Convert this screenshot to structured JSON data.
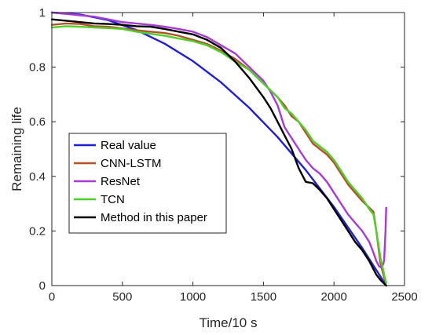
{
  "chart_data": {
    "type": "line",
    "title": "",
    "xlabel": "Time/10 s",
    "ylabel": "Remaining life",
    "xlim": [
      0,
      2500
    ],
    "ylim": [
      0,
      1
    ],
    "xticks": [
      0,
      500,
      1000,
      1500,
      2000,
      2500
    ],
    "yticks": [
      0,
      0.2,
      0.4,
      0.6,
      0.8,
      1
    ],
    "xtick_labels": [
      "0",
      "500",
      "1000",
      "1500",
      "2000",
      "2500"
    ],
    "ytick_labels": [
      "0",
      "0.2",
      "0.4",
      "0.6",
      "0.8",
      "1"
    ],
    "grid": false,
    "legend_position": "lower-left",
    "series": [
      {
        "name": "Real value",
        "color": "#1f1fd6",
        "x": [
          0,
          200,
          400,
          600,
          800,
          1000,
          1200,
          1400,
          1600,
          1800,
          2000,
          2200,
          2370
        ],
        "y": [
          1.0,
          0.993,
          0.972,
          0.936,
          0.886,
          0.822,
          0.744,
          0.651,
          0.544,
          0.423,
          0.288,
          0.138,
          0.0
        ]
      },
      {
        "name": "CNN-LSTM",
        "color": "#b5512a",
        "x": [
          0,
          100,
          200,
          300,
          400,
          500,
          600,
          700,
          800,
          900,
          1000,
          1100,
          1200,
          1300,
          1400,
          1500,
          1600,
          1650,
          1700,
          1750,
          1800,
          1850,
          1900,
          1950,
          2000,
          2050,
          2100,
          2150,
          2200,
          2250,
          2280,
          2300,
          2330,
          2360,
          2370
        ],
        "y": [
          0.955,
          0.96,
          0.958,
          0.95,
          0.948,
          0.942,
          0.935,
          0.93,
          0.925,
          0.915,
          0.9,
          0.885,
          0.86,
          0.83,
          0.79,
          0.74,
          0.69,
          0.66,
          0.62,
          0.6,
          0.56,
          0.52,
          0.5,
          0.48,
          0.45,
          0.41,
          0.37,
          0.34,
          0.31,
          0.285,
          0.27,
          0.2,
          0.08,
          0.02,
          0.01
        ]
      },
      {
        "name": "ResNet",
        "color": "#a83ad6",
        "x": [
          0,
          100,
          200,
          300,
          400,
          500,
          600,
          700,
          800,
          900,
          1000,
          1100,
          1200,
          1300,
          1400,
          1500,
          1550,
          1600,
          1650,
          1700,
          1750,
          1800,
          1850,
          1900,
          1950,
          2000,
          2050,
          2100,
          2150,
          2200,
          2250,
          2280,
          2300,
          2320,
          2340,
          2355,
          2365,
          2370
        ],
        "y": [
          1.0,
          0.995,
          0.99,
          0.985,
          0.975,
          0.965,
          0.96,
          0.955,
          0.948,
          0.94,
          0.93,
          0.91,
          0.88,
          0.85,
          0.8,
          0.75,
          0.71,
          0.66,
          0.58,
          0.54,
          0.5,
          0.46,
          0.43,
          0.41,
          0.38,
          0.34,
          0.3,
          0.26,
          0.23,
          0.2,
          0.16,
          0.12,
          0.09,
          0.07,
          0.065,
          0.09,
          0.2,
          0.285
        ]
      },
      {
        "name": "TCN",
        "color": "#4fcf2a",
        "x": [
          0,
          100,
          200,
          300,
          400,
          500,
          600,
          700,
          800,
          900,
          1000,
          1100,
          1200,
          1300,
          1400,
          1500,
          1600,
          1650,
          1700,
          1750,
          1800,
          1850,
          1900,
          1950,
          2000,
          2050,
          2100,
          2150,
          2200,
          2250,
          2280,
          2300,
          2330,
          2360,
          2370
        ],
        "y": [
          0.945,
          0.95,
          0.948,
          0.945,
          0.943,
          0.94,
          0.93,
          0.922,
          0.915,
          0.905,
          0.895,
          0.88,
          0.855,
          0.82,
          0.79,
          0.74,
          0.69,
          0.65,
          0.63,
          0.6,
          0.57,
          0.53,
          0.51,
          0.49,
          0.46,
          0.42,
          0.38,
          0.35,
          0.32,
          0.28,
          0.26,
          0.2,
          0.1,
          0.03,
          0.01
        ]
      },
      {
        "name": "Method in this paper",
        "color": "#000000",
        "x": [
          0,
          100,
          200,
          300,
          400,
          500,
          600,
          700,
          800,
          900,
          1000,
          1100,
          1200,
          1300,
          1400,
          1500,
          1550,
          1600,
          1650,
          1700,
          1750,
          1800,
          1850,
          1900,
          1950,
          2000,
          2050,
          2100,
          2150,
          2200,
          2250,
          2300,
          2330,
          2350,
          2370
        ],
        "y": [
          0.975,
          0.97,
          0.965,
          0.96,
          0.958,
          0.955,
          0.95,
          0.948,
          0.94,
          0.93,
          0.92,
          0.9,
          0.87,
          0.82,
          0.76,
          0.69,
          0.65,
          0.6,
          0.55,
          0.5,
          0.43,
          0.38,
          0.375,
          0.35,
          0.32,
          0.28,
          0.24,
          0.2,
          0.16,
          0.13,
          0.09,
          0.04,
          0.02,
          0.01,
          0.0
        ]
      }
    ]
  }
}
